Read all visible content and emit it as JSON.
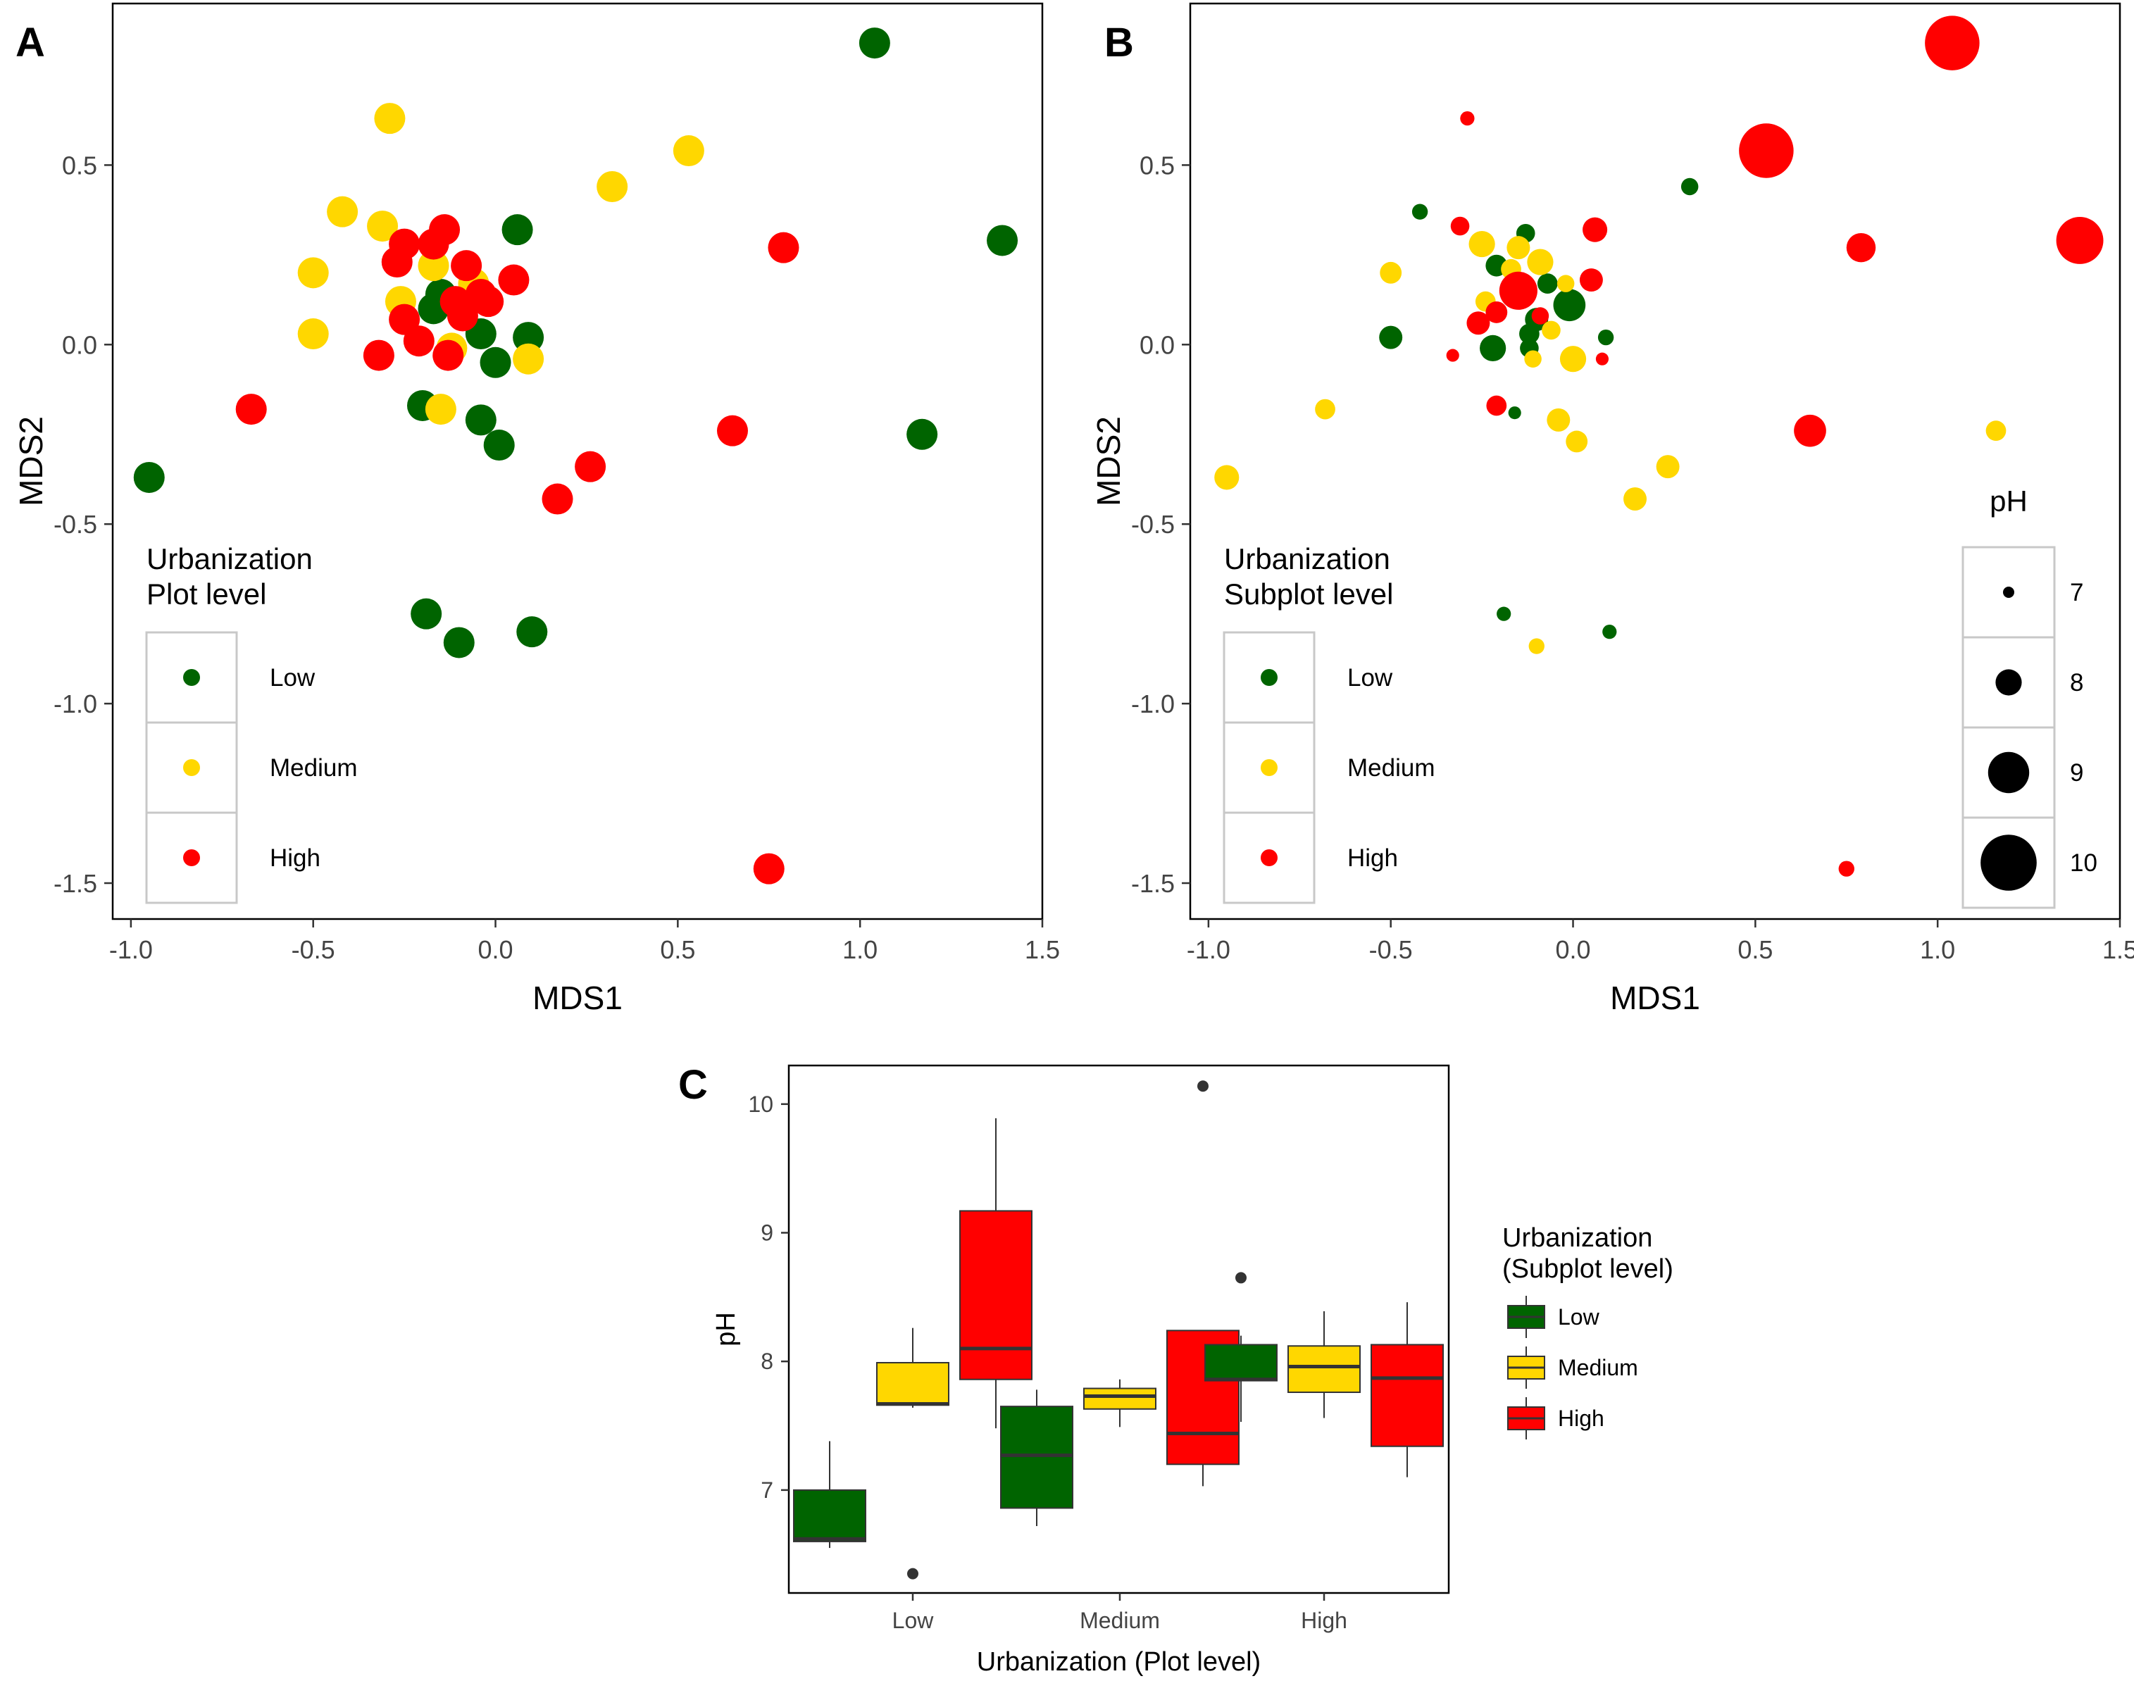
{
  "colors": {
    "Low": "#006400",
    "Medium": "#FFD700",
    "High": "#FF0000",
    "frame": "#000000",
    "legend_box": "#C8C8C8",
    "median": "#333333"
  },
  "chart_data": [
    {
      "panel": "A",
      "type": "scatter",
      "xlabel": "MDS1",
      "ylabel": "MDS2",
      "xlim": [
        -1.05,
        1.5
      ],
      "ylim": [
        -1.6,
        0.95
      ],
      "xticks": [
        -1.0,
        -0.5,
        0.0,
        0.5,
        1.0,
        1.5
      ],
      "xtick_labels": [
        "-1.0",
        "-0.5",
        "0.0",
        "0.5",
        "1.0",
        "1.5"
      ],
      "yticks": [
        -1.5,
        -1.0,
        -0.5,
        0.0,
        0.5
      ],
      "ytick_labels": [
        "-1.5",
        "-1.0",
        "-0.5",
        "0.0",
        "0.5"
      ],
      "legend": {
        "title_line1": "Urbanization",
        "title_line2": "Plot level",
        "entries": [
          "Low",
          "Medium",
          "High"
        ],
        "position": "bottom-left"
      },
      "series": [
        {
          "name": "Low",
          "points": [
            [
              1.04,
              0.84
            ],
            [
              1.39,
              0.29
            ],
            [
              1.17,
              -0.25
            ],
            [
              0.06,
              0.32
            ],
            [
              0.09,
              0.02
            ],
            [
              -0.15,
              0.14
            ],
            [
              -0.17,
              0.1
            ],
            [
              -0.04,
              0.03
            ],
            [
              0.0,
              -0.05
            ],
            [
              -0.2,
              -0.17
            ],
            [
              -0.04,
              -0.21
            ],
            [
              0.01,
              -0.28
            ],
            [
              -0.95,
              -0.37
            ],
            [
              -0.19,
              -0.75
            ],
            [
              -0.1,
              -0.83
            ],
            [
              0.1,
              -0.8
            ]
          ]
        },
        {
          "name": "Medium",
          "points": [
            [
              -0.29,
              0.63
            ],
            [
              0.53,
              0.54
            ],
            [
              0.32,
              0.44
            ],
            [
              -0.42,
              0.37
            ],
            [
              -0.31,
              0.33
            ],
            [
              -0.5,
              0.2
            ],
            [
              -0.17,
              0.22
            ],
            [
              -0.06,
              0.17
            ],
            [
              -0.26,
              0.12
            ],
            [
              -0.5,
              0.03
            ],
            [
              -0.12,
              -0.01
            ],
            [
              0.09,
              -0.04
            ],
            [
              -0.15,
              -0.18
            ]
          ]
        },
        {
          "name": "High",
          "points": [
            [
              0.79,
              0.27
            ],
            [
              -0.14,
              0.32
            ],
            [
              -0.25,
              0.28
            ],
            [
              -0.27,
              0.23
            ],
            [
              -0.08,
              0.22
            ],
            [
              -0.17,
              0.28
            ],
            [
              0.05,
              0.18
            ],
            [
              -0.04,
              0.14
            ],
            [
              -0.02,
              0.12
            ],
            [
              -0.11,
              0.12
            ],
            [
              -0.25,
              0.07
            ],
            [
              -0.09,
              0.08
            ],
            [
              -0.21,
              0.01
            ],
            [
              -0.13,
              -0.03
            ],
            [
              -0.32,
              -0.03
            ],
            [
              -0.67,
              -0.18
            ],
            [
              0.65,
              -0.24
            ],
            [
              0.26,
              -0.34
            ],
            [
              0.17,
              -0.43
            ],
            [
              0.75,
              -1.46
            ]
          ]
        }
      ]
    },
    {
      "panel": "B",
      "type": "scatter",
      "xlabel": "MDS1",
      "ylabel": "MDS2",
      "xlim": [
        -1.05,
        1.5
      ],
      "ylim": [
        -1.6,
        0.95
      ],
      "xticks": [
        -1.0,
        -0.5,
        0.0,
        0.5,
        1.0,
        1.5
      ],
      "xtick_labels": [
        "-1.0",
        "-0.5",
        "0.0",
        "0.5",
        "1.0",
        "1.5"
      ],
      "yticks": [
        -1.5,
        -1.0,
        -0.5,
        0.0,
        0.5
      ],
      "ytick_labels": [
        "-1.5",
        "-1.0",
        "-0.5",
        "0.0",
        "0.5"
      ],
      "legend": {
        "title_line1": "Urbanization",
        "title_line2": "Subplot level",
        "entries": [
          "Low",
          "Medium",
          "High"
        ],
        "position": "bottom-left"
      },
      "size_legend": {
        "title": "pH",
        "values": [
          7,
          8,
          9,
          10
        ],
        "labels": [
          "7",
          "8",
          "9",
          "10"
        ],
        "position": "bottom-right"
      },
      "series": [
        {
          "name": "Low",
          "points": [
            [
              0.32,
              0.44,
              7.4
            ],
            [
              -0.42,
              0.37,
              7.3
            ],
            [
              -0.13,
              0.31,
              7.5
            ],
            [
              -0.21,
              0.22,
              7.7
            ],
            [
              -0.07,
              0.17,
              7.6
            ],
            [
              -0.1,
              0.07,
              7.8
            ],
            [
              -0.12,
              0.03,
              7.6
            ],
            [
              -0.01,
              0.11,
              8.4
            ],
            [
              0.09,
              0.02,
              7.3
            ],
            [
              -0.5,
              0.02,
              7.8
            ],
            [
              -0.22,
              -0.01,
              8.0
            ],
            [
              -0.12,
              -0.01,
              7.5
            ],
            [
              -0.16,
              -0.19,
              7.1
            ],
            [
              -0.19,
              -0.75,
              7.2
            ],
            [
              0.1,
              -0.8,
              7.2
            ]
          ]
        },
        {
          "name": "Medium",
          "points": [
            [
              -0.25,
              0.28,
              8.0
            ],
            [
              -0.15,
              0.27,
              7.8
            ],
            [
              -0.09,
              0.23,
              8.0
            ],
            [
              -0.17,
              0.21,
              7.6
            ],
            [
              -0.5,
              0.2,
              7.7
            ],
            [
              -0.02,
              0.17,
              7.4
            ],
            [
              -0.24,
              0.12,
              7.6
            ],
            [
              -0.06,
              0.04,
              7.5
            ],
            [
              -0.11,
              -0.04,
              7.4
            ],
            [
              0.0,
              -0.04,
              8.0
            ],
            [
              -0.68,
              -0.18,
              7.6
            ],
            [
              -0.04,
              -0.21,
              7.8
            ],
            [
              0.01,
              -0.27,
              7.7
            ],
            [
              0.26,
              -0.34,
              7.8
            ],
            [
              0.17,
              -0.43,
              7.8
            ],
            [
              -0.95,
              -0.37,
              7.9
            ],
            [
              1.16,
              -0.24,
              7.6
            ],
            [
              -0.1,
              -0.84,
              7.3
            ]
          ]
        },
        {
          "name": "High",
          "points": [
            [
              1.04,
              0.84,
              9.9
            ],
            [
              0.53,
              0.54,
              9.9
            ],
            [
              1.39,
              0.29,
              9.4
            ],
            [
              0.79,
              0.27,
              8.2
            ],
            [
              -0.29,
              0.63,
              7.2
            ],
            [
              -0.31,
              0.33,
              7.5
            ],
            [
              0.06,
              0.32,
              7.9
            ],
            [
              -0.15,
              0.15,
              8.8
            ],
            [
              0.05,
              0.18,
              7.8
            ],
            [
              -0.21,
              0.09,
              7.7
            ],
            [
              -0.26,
              0.06,
              7.8
            ],
            [
              -0.09,
              0.08,
              7.4
            ],
            [
              0.08,
              -0.04,
              7.1
            ],
            [
              -0.33,
              -0.03,
              7.1
            ],
            [
              -0.21,
              -0.17,
              7.6
            ],
            [
              0.65,
              -0.24,
              8.4
            ],
            [
              0.75,
              -1.46,
              7.3
            ]
          ]
        }
      ]
    },
    {
      "panel": "C",
      "type": "box",
      "xlabel": "Urbanization (Plot level)",
      "ylabel": "pH",
      "ylim": [
        6.2,
        10.3
      ],
      "yticks": [
        7,
        8,
        9,
        10
      ],
      "ytick_labels": [
        "7",
        "8",
        "9",
        "10"
      ],
      "categories": [
        "Low",
        "Medium",
        "High"
      ],
      "legend": {
        "title_line1": "Urbanization",
        "title_line2": "(Subplot level)",
        "entries": [
          "Low",
          "Medium",
          "High"
        ],
        "position": "right"
      },
      "boxes": [
        {
          "plot": "Low",
          "subplot": "Low",
          "min": 6.55,
          "q1": 6.6,
          "median": 6.62,
          "q3": 7.0,
          "max": 7.38,
          "outliers": []
        },
        {
          "plot": "Low",
          "subplot": "Medium",
          "min": 7.64,
          "q1": 7.66,
          "median": 7.67,
          "q3": 7.99,
          "max": 8.26,
          "outliers": [
            6.35
          ]
        },
        {
          "plot": "Low",
          "subplot": "High",
          "min": 7.48,
          "q1": 7.86,
          "median": 8.1,
          "q3": 9.17,
          "max": 9.89,
          "outliers": []
        },
        {
          "plot": "Medium",
          "subplot": "Low",
          "min": 6.72,
          "q1": 6.86,
          "median": 7.27,
          "q3": 7.65,
          "max": 7.78,
          "outliers": []
        },
        {
          "plot": "Medium",
          "subplot": "Medium",
          "min": 7.49,
          "q1": 7.63,
          "median": 7.73,
          "q3": 7.79,
          "max": 7.86,
          "outliers": []
        },
        {
          "plot": "Medium",
          "subplot": "High",
          "min": 7.03,
          "q1": 7.2,
          "median": 7.44,
          "q3": 8.24,
          "max": 8.24,
          "outliers": [
            10.14
          ]
        },
        {
          "plot": "High",
          "subplot": "Low",
          "min": 7.53,
          "q1": 7.85,
          "median": 7.86,
          "q3": 8.13,
          "max": 8.2,
          "outliers": [
            8.65
          ]
        },
        {
          "plot": "High",
          "subplot": "Medium",
          "min": 7.56,
          "q1": 7.76,
          "median": 7.96,
          "q3": 8.12,
          "max": 8.39,
          "outliers": []
        },
        {
          "plot": "High",
          "subplot": "High",
          "min": 7.1,
          "q1": 7.34,
          "median": 7.87,
          "q3": 8.13,
          "max": 8.46,
          "outliers": []
        }
      ]
    }
  ]
}
